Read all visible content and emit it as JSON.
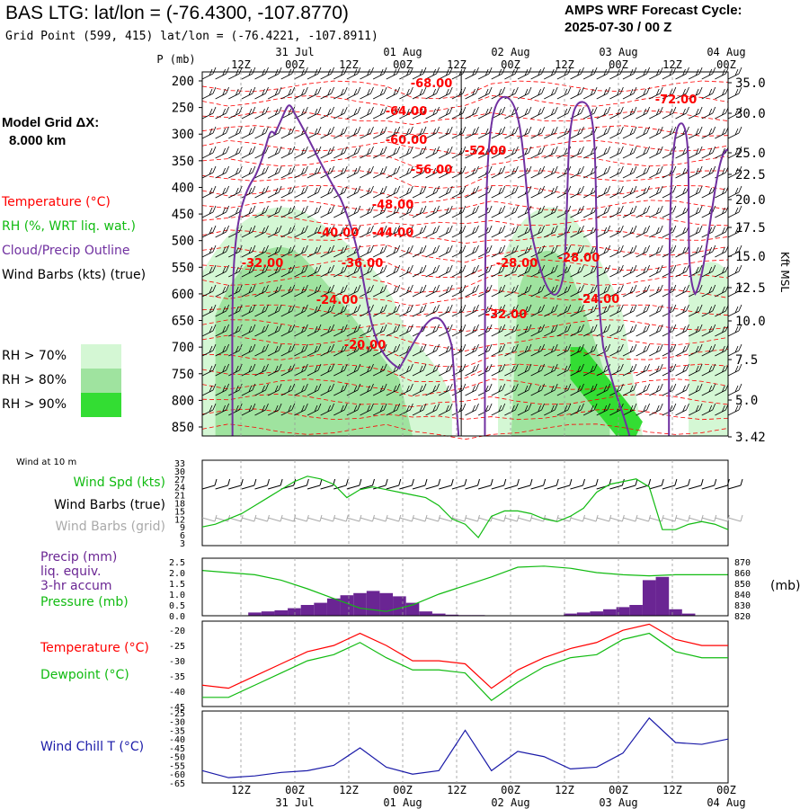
{
  "header": {
    "site_title": "BAS LTG:  lat/lon = (-76.4300, -107.8770)",
    "grid_point": "Grid Point (599, 415) lat/lon = (-76.4221, -107.8911)",
    "cycle_label": "AMPS WRF Forecast Cycle:",
    "cycle_value": "2025-07-30 / 00  Z",
    "model_grid_label": "Model Grid ΔX:",
    "model_grid_value": "8.000 km"
  },
  "colors": {
    "temperature": "#ff0000",
    "rh": "#11bb11",
    "cloud_outline": "#7030a0",
    "barb_true": "#000000",
    "barb_grid": "#aaaaaa",
    "precip": "#6a2593",
    "wind_chill": "#1a1aa8",
    "rh70": "#d4f7d4",
    "rh80": "#9fe39f",
    "rh90": "#33dd33"
  },
  "time_axis": {
    "ticks": [
      "12Z",
      "00Z",
      "12Z",
      "00Z",
      "12Z",
      "00Z",
      "12Z",
      "00Z",
      "12Z",
      "00Z"
    ],
    "dates": [
      "31 Jul",
      "01 Aug",
      "02 Aug",
      "03 Aug",
      "04 Aug"
    ]
  },
  "legends": {
    "top": [
      {
        "text": "Temperature (°C)",
        "color": "#ff0000"
      },
      {
        "text": "RH (%, WRT liq. wat.)",
        "color": "#11bb11"
      },
      {
        "text": "Cloud/Precip Outline",
        "color": "#7030a0"
      },
      {
        "text": "Wind Barbs (kts) (true)",
        "color": "#000000"
      }
    ],
    "rh_swatches": [
      "RH > 70%",
      "RH > 80%",
      "RH > 90%"
    ],
    "wind_panel_title": "Wind at 10 m",
    "wind": [
      {
        "text": "Wind Spd (kts)",
        "color": "#11bb11"
      },
      {
        "text": "Wind Barbs (true)",
        "color": "#000000"
      },
      {
        "text": "Wind Barbs (grid)",
        "color": "#aaaaaa"
      }
    ],
    "precip": [
      {
        "text": "Precip (mm)",
        "color": "#6a2593"
      },
      {
        "text": "liq. equiv.",
        "color": "#6a2593"
      },
      {
        "text": "3-hr accum",
        "color": "#6a2593"
      },
      {
        "text": "Pressure (mb)",
        "color": "#11bb11"
      }
    ],
    "precip_right_unit": "(mb)",
    "temp": [
      {
        "text": "Temperature (°C)",
        "color": "#ff0000"
      },
      {
        "text": "Dewpoint (°C)",
        "color": "#11bb11"
      }
    ],
    "chill": [
      {
        "text": "Wind Chill T (°C)",
        "color": "#1a1aa8"
      }
    ],
    "kft_label": "Kft MSL"
  },
  "chart_data": [
    {
      "type": "heatmap",
      "panel": "cross-section",
      "ylabel": "P (mb)",
      "yticks": [
        "200",
        "250",
        "300",
        "350",
        "400",
        "450",
        "500",
        "550",
        "600",
        "650",
        "700",
        "750",
        "800",
        "850"
      ],
      "right_ticks": [
        "35.0",
        "30.0",
        "25.0",
        "22.5",
        "20.0",
        "17.5",
        "15.0",
        "12.5",
        "10.0",
        "7.5",
        "5.0",
        "3.42"
      ],
      "right_label": "Kft MSL",
      "temperature_labels": [
        "-68.00",
        "-64.00",
        "-60.00",
        "-56.00",
        "-52.00",
        "-48.00",
        "-44.00",
        "-40.00",
        "-36.00",
        "-32.00",
        "-28.00",
        "-24.00",
        "-32.00",
        "-28.00",
        "-24.00",
        "-20.00",
        "-72.00"
      ]
    },
    {
      "type": "line",
      "panel": "wind",
      "title": "Wind at 10 m",
      "yticks": [
        "33",
        "30",
        "27",
        "24",
        "21",
        "18",
        "15",
        "12",
        "9",
        "6",
        "3"
      ],
      "ylim": [
        3,
        33
      ],
      "series": [
        {
          "name": "Wind Spd (kts)",
          "x": [
            0,
            1,
            2,
            3,
            4,
            5,
            6,
            7,
            8,
            9,
            10,
            11,
            12,
            13,
            14,
            15,
            16,
            17,
            18,
            19,
            20,
            21,
            22,
            23,
            24,
            25,
            26,
            27,
            28,
            29,
            30,
            31,
            32,
            33,
            34,
            35,
            36,
            37,
            38,
            39,
            40
          ],
          "values": [
            9,
            10,
            12,
            14,
            17,
            20,
            23,
            26,
            28,
            27,
            25,
            20,
            23,
            24,
            23,
            22,
            21,
            20,
            17,
            12,
            10,
            5,
            13,
            15,
            15,
            14,
            12,
            11,
            13,
            16,
            22,
            25,
            26,
            27,
            24,
            8,
            8,
            10,
            11,
            10,
            8
          ]
        }
      ]
    },
    {
      "type": "bar",
      "panel": "precip",
      "yticks": [
        "2.5",
        "2.0",
        "1.5",
        "1.0",
        "0.5",
        "0.0"
      ],
      "right_ticks": [
        "870",
        "860",
        "850",
        "840",
        "830",
        "820"
      ],
      "ylim": [
        0,
        2.5
      ],
      "series": [
        {
          "name": "Precip (mm)",
          "x": [
            3,
            4,
            5,
            6,
            7,
            8,
            9,
            10,
            11,
            12,
            13,
            14,
            15,
            16,
            17,
            18,
            19,
            20,
            21,
            22,
            23,
            24,
            25,
            26,
            27,
            28,
            29,
            30,
            31,
            32,
            33,
            34,
            35,
            36,
            37,
            38,
            39,
            40
          ],
          "values": [
            0.02,
            0.15,
            0.2,
            0.25,
            0.35,
            0.5,
            0.6,
            0.8,
            0.95,
            1.05,
            1.15,
            1.05,
            0.9,
            0.6,
            0.2,
            0.1,
            0.05,
            0.03,
            0.03,
            0.02,
            0.02,
            0.01,
            0,
            0.02,
            0.02,
            0.1,
            0.15,
            0.2,
            0.3,
            0.4,
            0.5,
            1.65,
            1.8,
            0.3,
            0.1,
            0.02,
            0,
            0
          ]
        },
        {
          "name": "Pressure (mb)",
          "x": [
            0,
            2,
            4,
            6,
            8,
            10,
            12,
            14,
            16,
            18,
            20,
            22,
            24,
            26,
            28,
            30,
            32,
            34,
            36,
            38,
            40
          ],
          "values": [
            862,
            860,
            858,
            853,
            845,
            836,
            827,
            824,
            830,
            840,
            848,
            856,
            865,
            866,
            864,
            860,
            858,
            857,
            858,
            858,
            858
          ]
        }
      ]
    },
    {
      "type": "line",
      "panel": "temperature",
      "yticks": [
        "-20",
        "-25",
        "-30",
        "-35",
        "-40",
        "-45"
      ],
      "ylim": [
        -45,
        -17
      ],
      "series": [
        {
          "name": "Temperature (°C)",
          "x": [
            0,
            2,
            4,
            6,
            8,
            10,
            12,
            14,
            16,
            18,
            20,
            22,
            24,
            26,
            28,
            30,
            32,
            34,
            36,
            38,
            40
          ],
          "values": [
            -38,
            -39,
            -35,
            -31,
            -27,
            -25,
            -21,
            -25,
            -30,
            -30,
            -31,
            -39,
            -33,
            -29,
            -26,
            -24,
            -20,
            -18,
            -23,
            -25,
            -25
          ]
        },
        {
          "name": "Dewpoint (°C)",
          "x": [
            0,
            2,
            4,
            6,
            8,
            10,
            12,
            14,
            16,
            18,
            20,
            22,
            24,
            26,
            28,
            30,
            32,
            34,
            36,
            38,
            40
          ],
          "values": [
            -42,
            -42,
            -38,
            -34,
            -30,
            -28,
            -24,
            -29,
            -33,
            -33,
            -34,
            -43,
            -37,
            -32,
            -29,
            -28,
            -23,
            -21,
            -27,
            -29,
            -29
          ]
        }
      ]
    },
    {
      "type": "line",
      "panel": "windchill",
      "yticks": [
        "-25",
        "-30",
        "-35",
        "-40",
        "-45",
        "-50",
        "-55",
        "-60",
        "-65"
      ],
      "ylim": [
        -65,
        -24
      ],
      "series": [
        {
          "name": "Wind Chill T (°C)",
          "x": [
            0,
            2,
            4,
            6,
            8,
            10,
            12,
            14,
            16,
            18,
            20,
            22,
            24,
            26,
            28,
            30,
            32,
            34,
            36,
            38,
            40
          ],
          "values": [
            -58,
            -62,
            -61,
            -59,
            -58,
            -55,
            -45,
            -56,
            -60,
            -58,
            -35,
            -58,
            -47,
            -50,
            -57,
            -56,
            -48,
            -28,
            -42,
            -43,
            -40
          ]
        }
      ]
    }
  ]
}
